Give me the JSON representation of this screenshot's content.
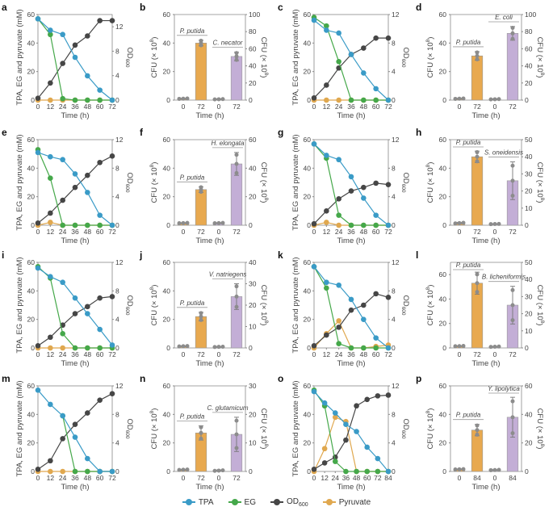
{
  "colors": {
    "TPA": "#3a9bc7",
    "EG": "#45a84a",
    "OD600": "#464646",
    "Pyruvate": "#e0a84f",
    "bar_pputida": "#e8a94f",
    "bar_other": "#c3aed6",
    "axis": "#888888",
    "point": "#8c8c8c"
  },
  "legend": [
    {
      "key": "TPA",
      "label": "TPA"
    },
    {
      "key": "EG",
      "label": "EG"
    },
    {
      "key": "OD600",
      "label": "OD",
      "sub": "600"
    },
    {
      "key": "Pyruvate",
      "label": "Pyruvate"
    }
  ],
  "chart_data": [
    {
      "panel": "a",
      "type": "line",
      "xlabel": "Time (h)",
      "ylabel": "TPA, EG and pyruvate (mM)",
      "y2label": "OD600",
      "x": [
        0,
        12,
        24,
        36,
        48,
        60,
        72
      ],
      "xticks": [
        0,
        12,
        24,
        36,
        48,
        60,
        72
      ],
      "ylim": [
        0,
        60
      ],
      "yticks": [
        0,
        20,
        40,
        60
      ],
      "y2lim": [
        0,
        14
      ],
      "y2ticks": [
        0,
        4,
        8,
        12
      ],
      "series": [
        {
          "name": "TPA",
          "values": [
            57,
            49,
            46,
            30,
            17,
            7,
            0
          ]
        },
        {
          "name": "EG",
          "values": [
            57,
            46,
            1,
            0,
            0,
            0,
            0
          ]
        },
        {
          "name": "OD600",
          "axis": "right",
          "values": [
            0.3,
            2.8,
            6,
            9,
            10.5,
            13,
            13
          ]
        },
        {
          "name": "Pyruvate",
          "values": [
            0,
            0,
            0,
            0,
            0,
            0,
            0
          ]
        }
      ]
    },
    {
      "panel": "b",
      "type": "bar",
      "xlabel": "Time (h)",
      "ylabel": "CFU (× 10^8)",
      "y2label": "CFU (× 10^8)",
      "categories": [
        "0",
        "72",
        "0",
        "72"
      ],
      "ylim": [
        0,
        60
      ],
      "yticks": [
        0,
        20,
        40,
        60
      ],
      "y2lim": [
        0,
        100
      ],
      "y2ticks": [
        0,
        20,
        40,
        60,
        80,
        100
      ],
      "groups": [
        {
          "label": "P. putida",
          "axis": "left",
          "values": [
            1,
            40
          ],
          "errors": [
            0.3,
            2
          ]
        },
        {
          "label": "C. necator",
          "axis": "right",
          "values": [
            1,
            51
          ],
          "errors": [
            0.5,
            5
          ]
        }
      ]
    },
    {
      "panel": "c",
      "type": "line",
      "xlabel": "Time (h)",
      "ylabel": "TPA, EG and pyruvate (mM)",
      "y2label": "OD600",
      "x": [
        0,
        12,
        24,
        36,
        48,
        60,
        72
      ],
      "xticks": [
        0,
        12,
        24,
        36,
        48,
        60,
        72
      ],
      "ylim": [
        0,
        60
      ],
      "yticks": [
        0,
        20,
        40,
        60
      ],
      "y2lim": [
        0,
        12
      ],
      "y2ticks": [
        0,
        4,
        8,
        12
      ],
      "series": [
        {
          "name": "TPA",
          "values": [
            56,
            49,
            47,
            32,
            19,
            8,
            0
          ]
        },
        {
          "name": "EG",
          "values": [
            58,
            52,
            27,
            0,
            0,
            0,
            0
          ]
        },
        {
          "name": "OD600",
          "axis": "right",
          "values": [
            0.3,
            2.1,
            4.5,
            6.4,
            7.3,
            8.7,
            8.7
          ]
        },
        {
          "name": "Pyruvate",
          "values": [
            0,
            0,
            0,
            0,
            0,
            0,
            0
          ]
        }
      ]
    },
    {
      "panel": "d",
      "type": "bar",
      "xlabel": "Time (h)",
      "ylabel": "CFU (× 10^8)",
      "y2label": "CFU (× 10^8)",
      "categories": [
        "0",
        "72",
        "0",
        "72"
      ],
      "ylim": [
        0,
        60
      ],
      "yticks": [
        0,
        20,
        40,
        60
      ],
      "y2lim": [
        0,
        100
      ],
      "y2ticks": [
        0,
        20,
        40,
        60,
        80,
        100
      ],
      "groups": [
        {
          "label": "P. putida",
          "axis": "left",
          "values": [
            1,
            31
          ],
          "errors": [
            0.3,
            3
          ]
        },
        {
          "label": "E. coli",
          "axis": "right",
          "values": [
            1,
            78
          ],
          "errors": [
            0.5,
            8
          ]
        }
      ]
    },
    {
      "panel": "e",
      "type": "line",
      "xlabel": "Time (h)",
      "ylabel": "TPA, EG and pyruvate (mM)",
      "y2label": "OD600",
      "x": [
        0,
        12,
        24,
        36,
        48,
        60,
        72
      ],
      "xticks": [
        0,
        12,
        24,
        36,
        48,
        60,
        72
      ],
      "ylim": [
        0,
        60
      ],
      "yticks": [
        0,
        20,
        40,
        60
      ],
      "y2lim": [
        0,
        12
      ],
      "y2ticks": [
        0,
        4,
        8,
        12
      ],
      "series": [
        {
          "name": "TPA",
          "values": [
            51,
            48,
            46,
            36,
            23,
            7,
            0
          ]
        },
        {
          "name": "EG",
          "values": [
            53,
            33,
            0,
            0,
            0,
            0,
            0
          ]
        },
        {
          "name": "OD600",
          "axis": "right",
          "values": [
            0.3,
            1.7,
            3.5,
            5.3,
            7,
            8.8,
            9.7
          ]
        },
        {
          "name": "Pyruvate",
          "values": [
            0,
            2,
            0,
            0,
            0,
            0,
            0
          ]
        }
      ]
    },
    {
      "panel": "f",
      "type": "bar",
      "xlabel": "Time (h)",
      "ylabel": "CFU (× 10^8)",
      "y2label": "CFU (× 10^8)",
      "categories": [
        "0",
        "72",
        "0",
        "72"
      ],
      "ylim": [
        0,
        60
      ],
      "yticks": [
        0,
        20,
        40,
        60
      ],
      "y2lim": [
        0,
        60
      ],
      "y2ticks": [
        0,
        20,
        40,
        60
      ],
      "groups": [
        {
          "label": "P. putida",
          "axis": "left",
          "values": [
            1.5,
            25
          ],
          "errors": [
            0.3,
            2
          ]
        },
        {
          "label": "H. elongata",
          "axis": "right",
          "values": [
            1.5,
            43
          ],
          "errors": [
            0.3,
            8
          ]
        }
      ]
    },
    {
      "panel": "g",
      "type": "line",
      "xlabel": "Time (h)",
      "ylabel": "TPA, EG and pyruvate (mM)",
      "y2label": "OD600",
      "x": [
        0,
        12,
        24,
        36,
        48,
        60,
        72
      ],
      "xticks": [
        0,
        12,
        24,
        36,
        48,
        60,
        72
      ],
      "ylim": [
        0,
        60
      ],
      "yticks": [
        0,
        20,
        40,
        60
      ],
      "y2lim": [
        0,
        12
      ],
      "y2ticks": [
        0,
        4,
        8,
        12
      ],
      "series": [
        {
          "name": "TPA",
          "values": [
            57,
            49,
            46,
            34,
            19,
            7,
            0
          ]
        },
        {
          "name": "EG",
          "values": [
            57,
            47,
            7,
            0,
            0,
            0,
            0
          ]
        },
        {
          "name": "OD600",
          "axis": "right",
          "values": [
            0.2,
            2,
            3.7,
            4.8,
            5.3,
            5.9,
            5.7
          ]
        },
        {
          "name": "Pyruvate",
          "values": [
            0,
            2,
            0,
            0,
            0,
            0,
            0
          ]
        }
      ]
    },
    {
      "panel": "h",
      "type": "bar",
      "xlabel": "Time (h)",
      "ylabel": "CFU (× 10^8)",
      "y2label": "CFU (× 10^8)",
      "categories": [
        "0",
        "72",
        "0",
        "72"
      ],
      "ylim": [
        0,
        60
      ],
      "yticks": [
        0,
        20,
        40,
        60
      ],
      "y2lim": [
        0,
        50
      ],
      "y2ticks": [
        0,
        10,
        20,
        30,
        40,
        50
      ],
      "groups": [
        {
          "label": "P. putida",
          "axis": "left",
          "values": [
            1.5,
            48
          ],
          "errors": [
            0.5,
            4
          ]
        },
        {
          "label": "S. oneidensis",
          "axis": "right",
          "values": [
            0.7,
            26
          ],
          "errors": [
            0.2,
            11
          ]
        }
      ]
    },
    {
      "panel": "i",
      "type": "line",
      "xlabel": "Time (h)",
      "ylabel": "TPA, EG and pyruvate (mM)",
      "y2label": "OD600",
      "x": [
        0,
        12,
        24,
        36,
        48,
        60,
        72
      ],
      "xticks": [
        0,
        12,
        24,
        36,
        48,
        60,
        72
      ],
      "ylim": [
        0,
        60
      ],
      "yticks": [
        0,
        20,
        40,
        60
      ],
      "y2lim": [
        0,
        12
      ],
      "y2ticks": [
        0,
        4,
        8,
        12
      ],
      "series": [
        {
          "name": "TPA",
          "values": [
            56,
            50,
            46,
            35,
            24,
            13,
            2
          ]
        },
        {
          "name": "EG",
          "values": [
            57,
            49,
            10,
            0,
            0,
            0,
            0
          ]
        },
        {
          "name": "OD600",
          "axis": "right",
          "values": [
            0.3,
            1.5,
            3.2,
            4.8,
            5.8,
            7,
            7.2
          ]
        },
        {
          "name": "Pyruvate",
          "values": [
            0,
            0,
            0,
            0,
            0,
            0,
            0
          ]
        }
      ]
    },
    {
      "panel": "j",
      "type": "bar",
      "xlabel": "Time (h)",
      "ylabel": "CFU (× 10^8)",
      "y2label": "CFU (× 10^8)",
      "categories": [
        "0",
        "72",
        "0",
        "72"
      ],
      "ylim": [
        0,
        60
      ],
      "yticks": [
        0,
        20,
        40,
        60
      ],
      "y2lim": [
        0,
        40
      ],
      "y2ticks": [
        0,
        10,
        20,
        30,
        40
      ],
      "groups": [
        {
          "label": "P. putida",
          "axis": "left",
          "values": [
            1.2,
            22
          ],
          "errors": [
            0.3,
            3
          ]
        },
        {
          "label": "V. natriegens",
          "axis": "right",
          "values": [
            0.5,
            24
          ],
          "errors": [
            0.2,
            6
          ]
        }
      ]
    },
    {
      "panel": "k",
      "type": "line",
      "xlabel": "Time (h)",
      "ylabel": "TPA, EG and pyruvate (mM)",
      "y2label": "OD600",
      "x": [
        0,
        12,
        24,
        36,
        48,
        60,
        72
      ],
      "xticks": [
        0,
        12,
        24,
        36,
        48,
        60,
        72
      ],
      "ylim": [
        0,
        60
      ],
      "yticks": [
        0,
        20,
        40,
        60
      ],
      "y2lim": [
        0,
        12
      ],
      "y2ticks": [
        0,
        4,
        8,
        12
      ],
      "series": [
        {
          "name": "TPA",
          "values": [
            57,
            46,
            44,
            34,
            20,
            7,
            0
          ]
        },
        {
          "name": "EG",
          "values": [
            57,
            42,
            3,
            0,
            0,
            0,
            0
          ]
        },
        {
          "name": "OD600",
          "axis": "right",
          "values": [
            0.3,
            1.8,
            2.9,
            5.3,
            6,
            7.6,
            7.1
          ]
        },
        {
          "name": "Pyruvate",
          "values": [
            0,
            10,
            19,
            0,
            0,
            1,
            2
          ]
        }
      ]
    },
    {
      "panel": "l",
      "type": "bar",
      "xlabel": "Time (h)",
      "ylabel": "CFU (× 10^8)",
      "y2label": "CFU (× 10^8)",
      "categories": [
        "0",
        "72",
        "0",
        "72"
      ],
      "ylim": [
        0,
        70
      ],
      "yticks": [
        0,
        20,
        40,
        60
      ],
      "y2lim": [
        0,
        50
      ],
      "y2ticks": [
        0,
        10,
        20,
        30,
        40,
        50
      ],
      "groups": [
        {
          "label": "P. putida",
          "axis": "left",
          "values": [
            1.5,
            53
          ],
          "errors": [
            0.3,
            9
          ]
        },
        {
          "label": "B. licheniformis",
          "axis": "right",
          "values": [
            0.7,
            25
          ],
          "errors": [
            0.3,
            11
          ]
        }
      ]
    },
    {
      "panel": "m",
      "type": "line",
      "xlabel": "Time (h)",
      "ylabel": "TPA, EG and pyruvate (mM)",
      "y2label": "OD600",
      "x": [
        0,
        12,
        24,
        36,
        48,
        60,
        72
      ],
      "xticks": [
        0,
        12,
        24,
        36,
        48,
        60,
        72
      ],
      "ylim": [
        0,
        60
      ],
      "yticks": [
        0,
        20,
        40,
        60
      ],
      "y2lim": [
        0,
        12
      ],
      "y2ticks": [
        0,
        4,
        8,
        12
      ],
      "series": [
        {
          "name": "TPA",
          "values": [
            57,
            47,
            39,
            24,
            9,
            0,
            0
          ]
        },
        {
          "name": "EG",
          "values": [
            null,
            null,
            39,
            0,
            0,
            0,
            0
          ]
        },
        {
          "name": "OD600",
          "axis": "right",
          "values": [
            0.3,
            1.5,
            4.6,
            6.6,
            8.2,
            10,
            10.9
          ]
        },
        {
          "name": "Pyruvate",
          "values": [
            0,
            0,
            0,
            0,
            0,
            0,
            0
          ]
        }
      ]
    },
    {
      "panel": "n",
      "type": "bar",
      "xlabel": "Time (h)",
      "ylabel": "CFU (× 10^8)",
      "y2label": "CFU (× 10^8)",
      "categories": [
        "0",
        "72",
        "0",
        "72"
      ],
      "ylim": [
        0,
        60
      ],
      "yticks": [
        0,
        20,
        40,
        60
      ],
      "y2lim": [
        0,
        30
      ],
      "y2ticks": [
        0,
        10,
        20,
        30
      ],
      "groups": [
        {
          "label": "P. putida",
          "axis": "left",
          "values": [
            1.2,
            27
          ],
          "errors": [
            0.3,
            5
          ]
        },
        {
          "label": "C. glutamicum",
          "axis": "right",
          "values": [
            0.3,
            13
          ],
          "errors": [
            0.2,
            6
          ]
        }
      ]
    },
    {
      "panel": "o",
      "type": "line",
      "xlabel": "Time (h)",
      "ylabel": "TPA, EG and pyruvate (mM)",
      "y2label": "OD600",
      "x": [
        0,
        12,
        24,
        36,
        48,
        60,
        72,
        84
      ],
      "xticks": [
        0,
        12,
        24,
        36,
        48,
        60,
        72,
        84
      ],
      "ylim": [
        0,
        60
      ],
      "yticks": [
        0,
        20,
        40,
        60
      ],
      "y2lim": [
        0,
        12
      ],
      "y2ticks": [
        0,
        4,
        8,
        12
      ],
      "series": [
        {
          "name": "TPA",
          "values": [
            56,
            48,
            41,
            33,
            28,
            17,
            9,
            0
          ]
        },
        {
          "name": "EG",
          "values": [
            57,
            46,
            7,
            0,
            0,
            0,
            0,
            0
          ]
        },
        {
          "name": "OD600",
          "axis": "right",
          "values": [
            0.3,
            1.2,
            2,
            4.4,
            9.2,
            10.1,
            10.6,
            10.7
          ]
        },
        {
          "name": "Pyruvate",
          "values": [
            0,
            16,
            38,
            35,
            0,
            0,
            0,
            0
          ]
        }
      ]
    },
    {
      "panel": "p",
      "type": "bar",
      "xlabel": "Time (h)",
      "ylabel": "CFU (× 10^8)",
      "y2label": "CFU (× 10^8)",
      "categories": [
        "0",
        "84",
        "0",
        "84"
      ],
      "ylim": [
        0,
        60
      ],
      "yticks": [
        0,
        20,
        40,
        60
      ],
      "y2lim": [
        0,
        60
      ],
      "y2ticks": [
        0,
        20,
        40,
        60
      ],
      "groups": [
        {
          "label": "P. putida",
          "axis": "left",
          "values": [
            1.5,
            29
          ],
          "errors": [
            0.3,
            4
          ]
        },
        {
          "label": "Y. lipolytica",
          "axis": "right",
          "values": [
            1,
            38
          ],
          "errors": [
            0.3,
            14
          ]
        }
      ]
    }
  ]
}
